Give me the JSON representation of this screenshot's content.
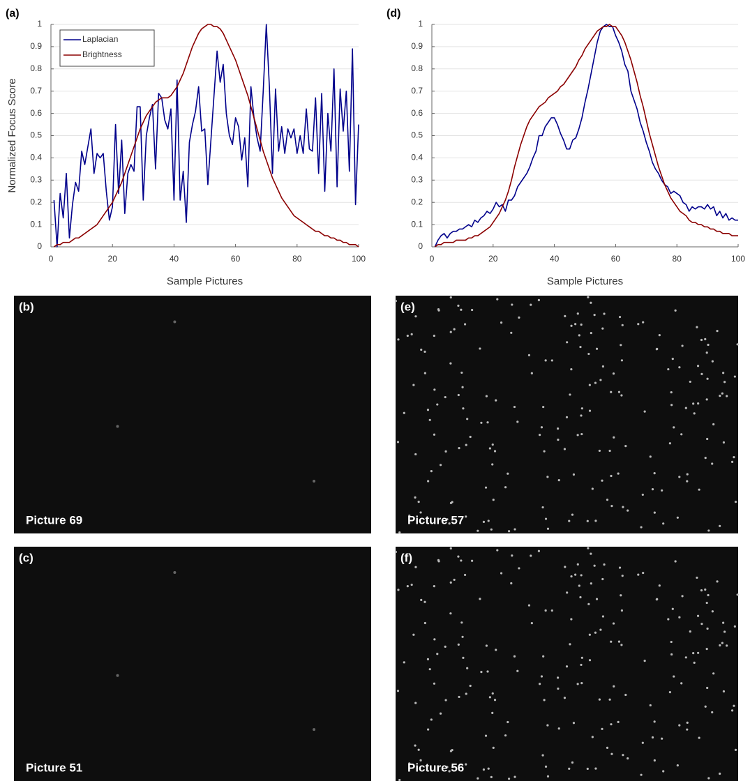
{
  "chart_data": [
    {
      "type": "line",
      "panel_label": "(a)",
      "xlabel": "Sample Pictures",
      "ylabel": "Normalized Focus Score",
      "x": [
        1,
        2,
        3,
        4,
        5,
        6,
        7,
        8,
        9,
        10,
        11,
        12,
        13,
        14,
        15,
        16,
        17,
        18,
        19,
        20,
        21,
        22,
        23,
        24,
        25,
        26,
        27,
        28,
        29,
        30,
        31,
        32,
        33,
        34,
        35,
        36,
        37,
        38,
        39,
        40,
        41,
        42,
        43,
        44,
        45,
        46,
        47,
        48,
        49,
        50,
        51,
        52,
        53,
        54,
        55,
        56,
        57,
        58,
        59,
        60,
        61,
        62,
        63,
        64,
        65,
        66,
        67,
        68,
        69,
        70,
        71,
        72,
        73,
        74,
        75,
        76,
        77,
        78,
        79,
        80,
        81,
        82,
        83,
        84,
        85,
        86,
        87,
        88,
        89,
        90,
        91,
        92,
        93,
        94,
        95,
        96,
        97,
        98,
        99,
        100
      ],
      "series": [
        {
          "name": "Laplacian",
          "color": "#00008b",
          "values": [
            0.21,
            0.0,
            0.24,
            0.13,
            0.33,
            0.04,
            0.19,
            0.29,
            0.25,
            0.43,
            0.37,
            0.45,
            0.53,
            0.33,
            0.42,
            0.4,
            0.42,
            0.25,
            0.12,
            0.18,
            0.55,
            0.24,
            0.48,
            0.15,
            0.33,
            0.37,
            0.34,
            0.63,
            0.63,
            0.21,
            0.5,
            0.58,
            0.64,
            0.35,
            0.69,
            0.67,
            0.57,
            0.53,
            0.62,
            0.21,
            0.75,
            0.21,
            0.34,
            0.11,
            0.47,
            0.55,
            0.61,
            0.72,
            0.52,
            0.53,
            0.28,
            0.48,
            0.68,
            0.88,
            0.74,
            0.82,
            0.6,
            0.5,
            0.46,
            0.58,
            0.54,
            0.39,
            0.49,
            0.27,
            0.72,
            0.58,
            0.49,
            0.43,
            0.7,
            1.0,
            0.72,
            0.33,
            0.71,
            0.43,
            0.54,
            0.42,
            0.53,
            0.49,
            0.53,
            0.42,
            0.5,
            0.42,
            0.62,
            0.44,
            0.43,
            0.67,
            0.33,
            0.69,
            0.25,
            0.6,
            0.43,
            0.8,
            0.27,
            0.71,
            0.52,
            0.7,
            0.34,
            0.89,
            0.19,
            0.55
          ]
        },
        {
          "name": "Brightness",
          "color": "#8b0000",
          "values": [
            0,
            0.01,
            0.01,
            0.02,
            0.02,
            0.02,
            0.03,
            0.04,
            0.04,
            0.05,
            0.06,
            0.07,
            0.08,
            0.09,
            0.1,
            0.12,
            0.14,
            0.16,
            0.18,
            0.2,
            0.23,
            0.26,
            0.29,
            0.33,
            0.37,
            0.41,
            0.45,
            0.49,
            0.53,
            0.56,
            0.59,
            0.61,
            0.63,
            0.65,
            0.66,
            0.67,
            0.67,
            0.67,
            0.68,
            0.7,
            0.72,
            0.75,
            0.78,
            0.82,
            0.86,
            0.9,
            0.93,
            0.96,
            0.98,
            0.99,
            1.0,
            1.0,
            0.99,
            0.99,
            0.98,
            0.96,
            0.93,
            0.9,
            0.87,
            0.84,
            0.8,
            0.76,
            0.72,
            0.68,
            0.63,
            0.58,
            0.53,
            0.48,
            0.43,
            0.39,
            0.35,
            0.31,
            0.28,
            0.25,
            0.22,
            0.2,
            0.18,
            0.16,
            0.14,
            0.13,
            0.12,
            0.11,
            0.1,
            0.09,
            0.08,
            0.07,
            0.07,
            0.06,
            0.05,
            0.05,
            0.04,
            0.04,
            0.03,
            0.03,
            0.02,
            0.02,
            0.01,
            0.01,
            0.01,
            0
          ]
        }
      ],
      "xlim": [
        0,
        100
      ],
      "xticks": [
        0,
        20,
        40,
        60,
        80,
        100
      ],
      "ylim": [
        0,
        1
      ],
      "yticks": [
        0,
        0.1,
        0.2,
        0.3,
        0.4,
        0.5,
        0.6,
        0.7,
        0.8,
        0.9,
        1
      ],
      "grid": true,
      "legend": "upper left"
    },
    {
      "type": "line",
      "panel_label": "(d)",
      "xlabel": "Sample Pictures",
      "x": [
        1,
        2,
        3,
        4,
        5,
        6,
        7,
        8,
        9,
        10,
        11,
        12,
        13,
        14,
        15,
        16,
        17,
        18,
        19,
        20,
        21,
        22,
        23,
        24,
        25,
        26,
        27,
        28,
        29,
        30,
        31,
        32,
        33,
        34,
        35,
        36,
        37,
        38,
        39,
        40,
        41,
        42,
        43,
        44,
        45,
        46,
        47,
        48,
        49,
        50,
        51,
        52,
        53,
        54,
        55,
        56,
        57,
        58,
        59,
        60,
        61,
        62,
        63,
        64,
        65,
        66,
        67,
        68,
        69,
        70,
        71,
        72,
        73,
        74,
        75,
        76,
        77,
        78,
        79,
        80,
        81,
        82,
        83,
        84,
        85,
        86,
        87,
        88,
        89,
        90,
        91,
        92,
        93,
        94,
        95,
        96,
        97,
        98,
        99,
        100
      ],
      "series": [
        {
          "color": "#00008b",
          "values": [
            0.0,
            0.03,
            0.05,
            0.06,
            0.04,
            0.06,
            0.07,
            0.07,
            0.08,
            0.08,
            0.09,
            0.1,
            0.09,
            0.12,
            0.11,
            0.13,
            0.14,
            0.16,
            0.15,
            0.17,
            0.2,
            0.18,
            0.19,
            0.16,
            0.21,
            0.21,
            0.23,
            0.27,
            0.29,
            0.31,
            0.33,
            0.36,
            0.4,
            0.43,
            0.5,
            0.5,
            0.54,
            0.56,
            0.58,
            0.58,
            0.55,
            0.51,
            0.48,
            0.44,
            0.44,
            0.48,
            0.49,
            0.53,
            0.58,
            0.65,
            0.71,
            0.78,
            0.85,
            0.92,
            0.97,
            0.99,
            1.0,
            0.99,
            0.99,
            0.95,
            0.92,
            0.88,
            0.82,
            0.79,
            0.7,
            0.66,
            0.62,
            0.56,
            0.52,
            0.47,
            0.43,
            0.38,
            0.35,
            0.33,
            0.3,
            0.28,
            0.27,
            0.24,
            0.25,
            0.24,
            0.23,
            0.2,
            0.19,
            0.16,
            0.18,
            0.17,
            0.18,
            0.18,
            0.17,
            0.19,
            0.17,
            0.18,
            0.14,
            0.16,
            0.13,
            0.15,
            0.12,
            0.13,
            0.12,
            0.12
          ]
        },
        {
          "color": "#8b0000",
          "values": [
            0.0,
            0.01,
            0.01,
            0.02,
            0.02,
            0.02,
            0.02,
            0.03,
            0.03,
            0.03,
            0.03,
            0.04,
            0.04,
            0.05,
            0.05,
            0.06,
            0.07,
            0.08,
            0.09,
            0.11,
            0.13,
            0.15,
            0.18,
            0.21,
            0.25,
            0.3,
            0.36,
            0.41,
            0.46,
            0.5,
            0.54,
            0.57,
            0.59,
            0.61,
            0.63,
            0.64,
            0.65,
            0.67,
            0.68,
            0.69,
            0.7,
            0.72,
            0.73,
            0.75,
            0.77,
            0.79,
            0.81,
            0.84,
            0.86,
            0.89,
            0.91,
            0.93,
            0.95,
            0.97,
            0.98,
            0.99,
            0.99,
            1.0,
            0.99,
            0.99,
            0.97,
            0.95,
            0.92,
            0.88,
            0.84,
            0.79,
            0.74,
            0.68,
            0.63,
            0.57,
            0.51,
            0.46,
            0.41,
            0.36,
            0.32,
            0.28,
            0.25,
            0.22,
            0.2,
            0.18,
            0.16,
            0.15,
            0.14,
            0.12,
            0.11,
            0.11,
            0.1,
            0.1,
            0.09,
            0.09,
            0.08,
            0.08,
            0.07,
            0.07,
            0.06,
            0.06,
            0.06,
            0.05,
            0.05,
            0.05
          ]
        }
      ],
      "xlim": [
        0,
        100
      ],
      "xticks": [
        0,
        20,
        40,
        60,
        80,
        100
      ],
      "ylim": [
        0,
        1
      ],
      "yticks": [
        0,
        0.1,
        0.2,
        0.3,
        0.4,
        0.5,
        0.6,
        0.7,
        0.8,
        0.9,
        1
      ],
      "grid": true
    }
  ],
  "images": [
    {
      "label": "(b)",
      "caption": "Picture 69"
    },
    {
      "label": "(c)",
      "caption": "Picture 51"
    },
    {
      "label": "(e)",
      "caption": "Picture 57"
    },
    {
      "label": "(f)",
      "caption": "Picture 56"
    }
  ]
}
